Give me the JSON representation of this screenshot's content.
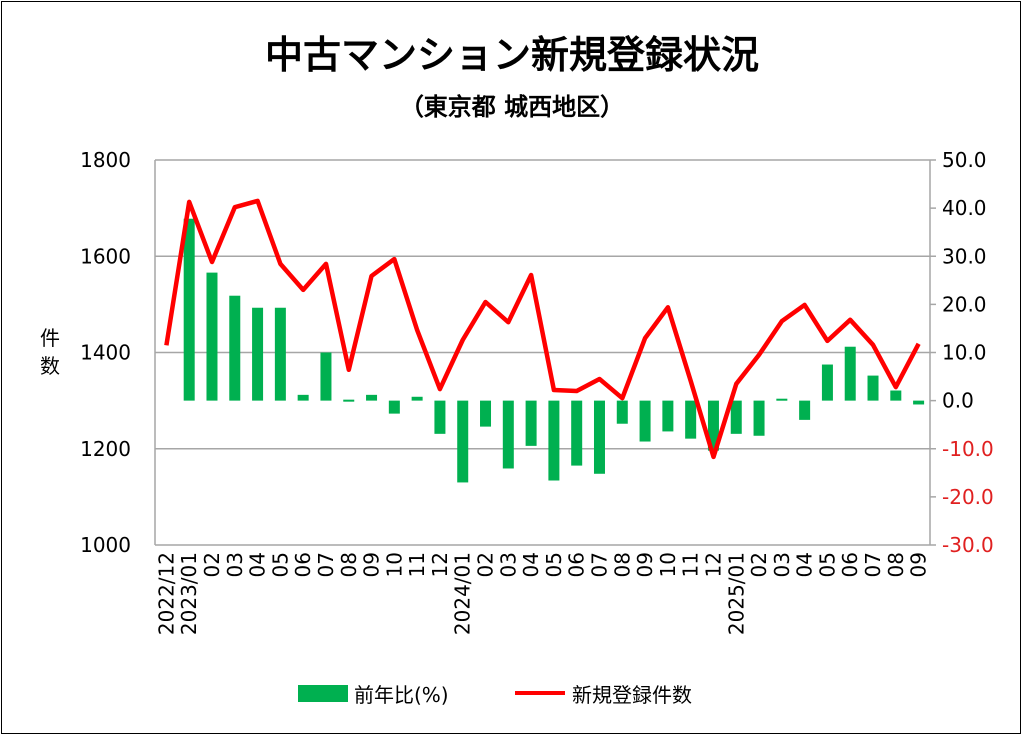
{
  "chart_data": {
    "type": "bar+line",
    "title": "中古マンション新規登録状況",
    "subtitle": "（東京都 城西地区）",
    "ylabel": "件数",
    "ylabel_chars": [
      "件",
      "数"
    ],
    "ylim": [
      1000,
      1800
    ],
    "y_ticks": [
      "1800",
      "1600",
      "1400",
      "1200",
      "1000"
    ],
    "y2lim": [
      -30,
      50
    ],
    "y2_ticks": [
      "50.0",
      "40.0",
      "30.0",
      "20.0",
      "10.0",
      "0.0",
      "-10.0",
      "-20.0",
      "-30.0"
    ],
    "grid": true,
    "legend_position": "bottom",
    "categories": [
      "2022/12",
      "2023/01",
      "02",
      "03",
      "04",
      "05",
      "06",
      "07",
      "08",
      "09",
      "10",
      "11",
      "12",
      "2024/01",
      "02",
      "03",
      "04",
      "05",
      "06",
      "07",
      "08",
      "09",
      "10",
      "11",
      "12",
      "2025/01",
      "02",
      "03",
      "04",
      "05",
      "06",
      "07",
      "08",
      "09"
    ],
    "series": [
      {
        "name": "前年比(%)",
        "type": "bar",
        "axis": "right",
        "color": "#00b050",
        "values": [
          null,
          37.8,
          26.6,
          21.8,
          19.3,
          19.3,
          1.2,
          10.0,
          0.2,
          1.2,
          -2.7,
          0.8,
          -6.9,
          -17.0,
          -5.4,
          -14.1,
          -9.4,
          -16.6,
          -13.5,
          -15.2,
          -4.8,
          -8.5,
          -6.4,
          -7.9,
          -10.4,
          -6.9,
          -7.3,
          0.4,
          -4.0,
          7.5,
          11.2,
          5.2,
          2.1,
          -0.8
        ]
      },
      {
        "name": "新規登録件数",
        "type": "line",
        "axis": "left",
        "color": "#ff0000",
        "values": [
          1415,
          1713,
          1588,
          1702,
          1715,
          1584,
          1530,
          1584,
          1364,
          1559,
          1594,
          1447,
          1324,
          1426,
          1505,
          1463,
          1561,
          1322,
          1320,
          1345,
          1305,
          1430,
          1494,
          1341,
          1183,
          1335,
          1395,
          1465,
          1499,
          1424,
          1468,
          1416,
          1328,
          1418
        ]
      }
    ],
    "negative_tick_color": "#e02020"
  }
}
